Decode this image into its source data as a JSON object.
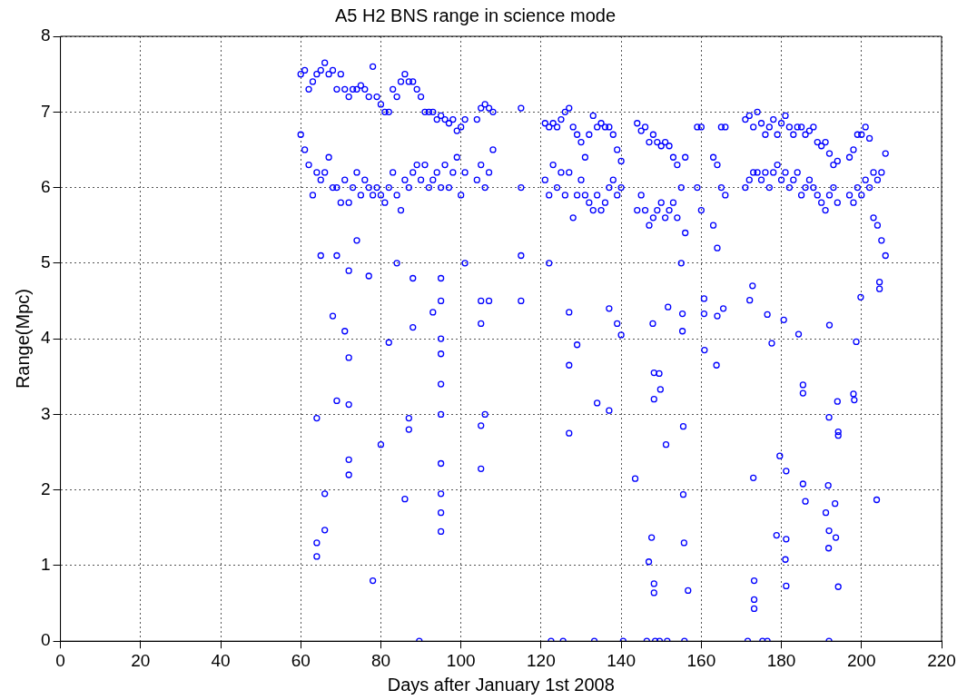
{
  "chart_data": {
    "type": "scatter",
    "title": "A5 H2 BNS range in science mode",
    "xlabel": "Days after January 1st 2008",
    "ylabel": "Range(Mpc)",
    "xlim": [
      0,
      220
    ],
    "xticks": [
      0,
      20,
      40,
      60,
      80,
      100,
      120,
      140,
      160,
      180,
      200,
      220
    ],
    "ylim": [
      0,
      8
    ],
    "yticks": [
      0,
      1,
      2,
      3,
      4,
      5,
      6,
      7,
      8
    ],
    "grid": true,
    "marker": "circle",
    "series": [
      {
        "color": "#0000ff",
        "x": [
          60,
          60,
          61,
          61,
          62,
          62,
          63,
          63,
          64,
          64,
          65,
          65,
          66,
          66,
          67,
          67,
          68,
          68,
          69,
          69,
          70,
          70,
          71,
          71,
          72,
          72,
          73,
          73,
          74,
          74,
          75,
          75,
          76,
          76,
          77,
          77,
          78,
          78,
          79,
          79,
          80,
          80,
          81,
          81,
          82,
          82,
          83,
          83,
          84,
          84,
          85,
          85,
          86,
          86,
          87,
          87,
          88,
          88,
          89,
          89,
          90,
          90,
          91,
          91,
          92,
          92,
          93,
          93,
          94,
          94,
          95,
          95,
          96,
          96,
          97,
          97,
          98,
          98,
          99,
          99,
          100,
          100,
          101,
          101,
          104,
          104,
          105,
          105,
          106,
          106,
          107,
          107,
          108,
          108,
          115,
          115,
          121,
          121,
          122,
          122,
          123,
          123,
          124,
          124,
          125,
          125,
          126,
          126,
          127,
          127,
          128,
          128,
          129,
          129,
          130,
          130,
          131,
          131,
          132,
          132,
          133,
          133,
          134,
          134,
          135,
          135,
          136,
          136,
          137,
          137,
          138,
          138,
          139,
          139,
          140,
          140,
          144,
          144,
          145,
          145,
          146,
          146,
          147,
          147,
          148,
          148,
          149,
          149,
          150,
          150,
          151,
          151,
          152,
          152,
          153,
          153,
          154,
          154,
          155,
          155,
          156,
          156,
          159,
          159,
          160,
          160,
          163,
          163,
          164,
          164,
          165,
          165,
          166,
          166,
          171,
          171,
          172,
          172,
          173,
          173,
          174,
          174,
          175,
          175,
          176,
          176,
          177,
          177,
          178,
          178,
          179,
          179,
          180,
          180,
          181,
          181,
          182,
          182,
          183,
          183,
          184,
          184,
          185,
          185,
          186,
          186,
          187,
          187,
          188,
          188,
          189,
          189,
          190,
          190,
          191,
          191,
          192,
          192,
          193,
          193,
          194,
          194,
          197,
          197,
          198,
          198,
          199,
          199,
          200,
          200,
          201,
          201,
          202,
          202,
          203,
          203,
          204,
          204,
          205,
          205,
          206,
          206
        ],
        "values": [
          7.5,
          6.7,
          7.55,
          6.5,
          7.3,
          6.3,
          7.4,
          5.9,
          7.5,
          6.2,
          7.55,
          6.1,
          7.65,
          6.2,
          7.5,
          6.4,
          7.55,
          6.0,
          7.3,
          6.0,
          7.5,
          5.8,
          7.3,
          6.1,
          7.2,
          5.8,
          7.3,
          6.0,
          7.3,
          6.2,
          7.35,
          5.9,
          7.3,
          6.1,
          7.2,
          6.0,
          7.6,
          5.9,
          7.2,
          6.0,
          7.1,
          5.9,
          7.0,
          5.8,
          7.0,
          6.0,
          7.3,
          6.2,
          7.2,
          5.9,
          7.4,
          5.7,
          7.5,
          6.1,
          7.4,
          6.0,
          7.4,
          6.2,
          7.3,
          6.3,
          7.2,
          6.1,
          7.0,
          6.3,
          7.0,
          6.0,
          7.0,
          6.1,
          6.9,
          6.2,
          6.95,
          6.0,
          6.9,
          6.3,
          6.85,
          6.0,
          6.9,
          6.2,
          6.75,
          6.4,
          6.8,
          5.9,
          6.9,
          6.2,
          6.9,
          6.1,
          7.05,
          6.3,
          7.1,
          6.0,
          7.05,
          6.2,
          7.0,
          6.5,
          7.05,
          6.0,
          6.85,
          6.1,
          6.8,
          5.9,
          6.85,
          6.3,
          6.8,
          6.0,
          6.9,
          6.2,
          7.0,
          5.9,
          7.05,
          6.2,
          6.8,
          5.6,
          6.7,
          5.9,
          6.6,
          6.1,
          6.4,
          5.9,
          6.7,
          5.8,
          6.95,
          5.7,
          6.8,
          5.9,
          6.85,
          5.7,
          6.8,
          5.8,
          6.8,
          6.0,
          6.7,
          6.1,
          6.5,
          5.9,
          6.35,
          6.0,
          6.85,
          5.7,
          6.75,
          5.9,
          6.8,
          5.7,
          6.6,
          5.5,
          6.7,
          5.6,
          6.6,
          5.7,
          6.55,
          5.8,
          6.6,
          5.6,
          6.55,
          5.7,
          6.4,
          5.8,
          6.3,
          5.6,
          6.0,
          5.0,
          6.4,
          5.4,
          6.8,
          6.0,
          6.8,
          5.7,
          6.4,
          5.5,
          6.3,
          5.2,
          6.8,
          6.0,
          6.8,
          5.9,
          6.9,
          6.0,
          6.95,
          6.1,
          6.8,
          6.2,
          7.0,
          6.2,
          6.85,
          6.1,
          6.7,
          6.2,
          6.8,
          6.0,
          6.9,
          6.2,
          6.7,
          6.3,
          6.85,
          6.1,
          6.95,
          6.2,
          6.8,
          6.0,
          6.7,
          6.1,
          6.8,
          6.2,
          6.8,
          5.9,
          6.7,
          6.0,
          6.75,
          6.1,
          6.8,
          6.0,
          6.6,
          5.9,
          6.55,
          5.8,
          6.6,
          5.7,
          6.45,
          5.9,
          6.3,
          6.0,
          6.35,
          5.8,
          6.4,
          5.9,
          6.5,
          5.8,
          6.7,
          6.0,
          6.7,
          5.9,
          6.8,
          6.1,
          6.65,
          6.0,
          6.2,
          5.6,
          6.1,
          5.5,
          6.2,
          5.3,
          6.45,
          5.1
        ]
      },
      {
        "color": "#0000ff",
        "x": [
          64,
          64,
          64,
          65,
          66,
          66,
          68,
          69,
          69,
          71,
          72,
          72,
          72,
          72,
          72,
          74,
          77,
          78,
          80,
          82,
          84,
          86,
          87,
          87,
          88,
          88,
          89.6,
          93,
          95,
          95,
          95,
          95,
          95,
          95,
          95,
          95,
          95,
          95,
          101,
          105,
          105,
          105,
          105,
          106,
          107,
          115,
          115,
          122.5,
          122,
          125.5,
          127,
          127,
          127,
          129,
          133.3,
          134,
          137,
          137,
          139,
          140.5,
          143.5,
          146.4,
          146.9,
          147.6,
          148.2,
          148.2,
          148.5,
          149.6,
          151.5,
          155.8,
          156.7,
          155.7,
          155.5,
          151.2,
          155.5,
          148.2,
          149.5,
          149.8,
          148.2,
          160.8,
          163.8,
          173,
          173.2,
          173.2,
          173.2,
          171.6,
          175.3,
          176.5,
          179.6,
          181.2,
          178.8,
          181.2,
          181,
          181.2,
          185.4,
          186,
          185.4,
          185.4,
          191.9,
          194,
          194.2,
          194.2,
          191.7,
          191.1,
          193.4,
          191.9,
          193.6,
          191.8,
          194.2,
          191.9,
          198,
          198.2,
          203.8,
          204.5,
          204.5,
          198.7,
          199.8,
          192,
          184.3,
          176.5,
          177.6,
          180.6,
          172.1,
          172.8,
          164,
          160.7,
          160.7,
          165.5,
          155.3,
          155.3,
          151.7,
          147.9,
          140
        ],
        "values": [
          2.95,
          1.3,
          1.12,
          5.1,
          1.95,
          1.47,
          4.3,
          3.18,
          5.1,
          4.1,
          3.13,
          2.4,
          2.2,
          3.75,
          4.9,
          5.3,
          4.83,
          0.8,
          2.6,
          3.95,
          5.0,
          1.88,
          2.95,
          2.8,
          4.15,
          4.8,
          0,
          4.35,
          4.8,
          4.5,
          4.0,
          3.8,
          3.4,
          3.0,
          2.35,
          1.95,
          1.7,
          1.45,
          5.0,
          4.5,
          4.2,
          2.85,
          2.28,
          3.0,
          4.5,
          4.5,
          5.1,
          0,
          5.0,
          0,
          4.35,
          3.65,
          2.75,
          3.92,
          0,
          3.15,
          3.05,
          4.4,
          4.2,
          0,
          2.15,
          0,
          1.05,
          1.37,
          0.76,
          0.64,
          0,
          0,
          0,
          0,
          0.67,
          1.3,
          1.94,
          2.6,
          2.84,
          3.55,
          3.54,
          3.33,
          3.2,
          3.85,
          3.65,
          2.16,
          0.8,
          0.55,
          0.43,
          0,
          0,
          0,
          2.45,
          2.25,
          1.4,
          1.35,
          1.08,
          0.73,
          2.08,
          1.85,
          3.39,
          3.28,
          2.96,
          3.17,
          2.77,
          2.72,
          2.06,
          1.7,
          1.82,
          1.46,
          1.37,
          1.23,
          0.72,
          0,
          3.27,
          3.19,
          1.87,
          4.75,
          4.66,
          3.96,
          4.55,
          4.18,
          4.06,
          4.32,
          3.94,
          4.25,
          4.51,
          4.7,
          4.3,
          4.33,
          4.53,
          4.4,
          4.1,
          4.33,
          4.42,
          4.2,
          4.05
        ]
      }
    ]
  }
}
